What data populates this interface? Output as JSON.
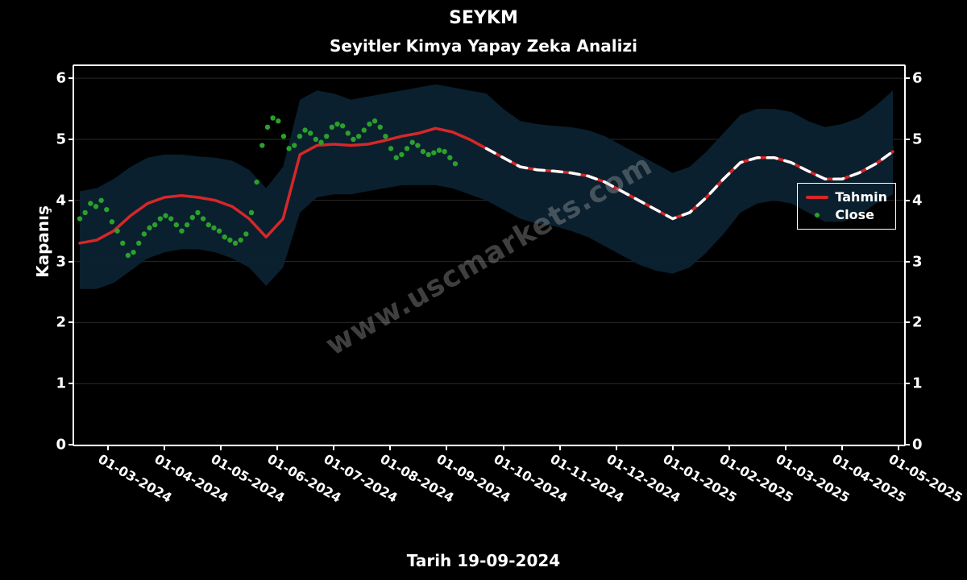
{
  "chart": {
    "type": "line",
    "title": "SEYKM",
    "subtitle": "Seyitler Kimya Yapay Zeka Analizi",
    "ylabel": "Kapanış",
    "xlabel": "Tarih 19-09-2024",
    "background_color": "#000000",
    "plot_background": "#000000",
    "axis_color": "#ffffff",
    "grid_color": "#2a2a2a",
    "text_color": "#ffffff",
    "title_fontsize": 22,
    "subtitle_fontsize": 20,
    "label_fontsize": 20,
    "tick_fontsize": 18,
    "xtick_fontsize": 16,
    "xtick_rotation_deg": 30,
    "ylim": [
      0,
      6.2
    ],
    "yticks": [
      0,
      1,
      2,
      3,
      4,
      5,
      6
    ],
    "ytick_labels": [
      "0",
      "1",
      "2",
      "3",
      "4",
      "5",
      "6"
    ],
    "xticks_idx": [
      0,
      1,
      2,
      3,
      4,
      5,
      6,
      7,
      8,
      9,
      10,
      11,
      12,
      13,
      14
    ],
    "xtick_labels": [
      "01-03-2024",
      "01-04-2024",
      "01-05-2024",
      "01-06-2024",
      "01-07-2024",
      "01-08-2024",
      "01-09-2024",
      "01-10-2024",
      "01-11-2024",
      "01-12-2024",
      "01-01-2025",
      "01-02-2025",
      "01-03-2025",
      "01-04-2025",
      "01-05-2025"
    ],
    "xlim_idx": [
      -0.6,
      14.1
    ],
    "legend": {
      "position": "right-middle",
      "border_color": "#ffffff",
      "items": [
        {
          "label": "Tahmin",
          "type": "line",
          "color": "#d62728",
          "dash": true
        },
        {
          "label": "Close",
          "type": "dot",
          "color": "#2ca02c"
        }
      ]
    },
    "watermark": {
      "text": "www.uscmarkets.com",
      "color": "rgba(180,180,180,0.35)",
      "rotation_deg": -30,
      "fontsize": 36
    },
    "band": {
      "fill": "#0b2230",
      "opacity": 0.95,
      "upper": [
        4.15,
        4.2,
        4.35,
        4.55,
        4.7,
        4.75,
        4.75,
        4.72,
        4.7,
        4.65,
        4.5,
        4.2,
        4.55,
        5.65,
        5.8,
        5.75,
        5.65,
        5.7,
        5.75,
        5.8,
        5.85,
        5.9,
        5.85,
        5.8,
        5.75,
        5.5,
        5.3,
        5.25,
        5.22,
        5.2,
        5.15,
        5.05,
        4.9,
        4.75,
        4.6,
        4.45,
        4.55,
        4.8,
        5.1,
        5.4,
        5.5,
        5.5,
        5.45,
        5.3,
        5.2,
        5.25,
        5.35,
        5.55,
        5.8
      ],
      "lower": [
        2.55,
        2.55,
        2.65,
        2.85,
        3.05,
        3.15,
        3.2,
        3.2,
        3.15,
        3.05,
        2.9,
        2.6,
        2.9,
        3.8,
        4.05,
        4.1,
        4.1,
        4.15,
        4.2,
        4.25,
        4.25,
        4.25,
        4.2,
        4.1,
        4.0,
        3.85,
        3.7,
        3.62,
        3.58,
        3.5,
        3.4,
        3.25,
        3.1,
        2.95,
        2.85,
        2.8,
        2.9,
        3.15,
        3.45,
        3.8,
        3.95,
        4.0,
        3.95,
        3.8,
        3.65,
        3.65,
        3.75,
        3.95,
        4.1
      ],
      "x_idx_step": 0.3
    },
    "tahmin": {
      "color_solid": "#d62728",
      "white_overlay": "#ffffff",
      "line_width": 3.5,
      "dash_pattern": "12 10",
      "dash_start_idx": 6.4,
      "y": [
        3.3,
        3.35,
        3.5,
        3.75,
        3.95,
        4.05,
        4.08,
        4.05,
        4.0,
        3.9,
        3.7,
        3.4,
        3.7,
        4.75,
        4.9,
        4.92,
        4.9,
        4.92,
        4.98,
        5.05,
        5.1,
        5.18,
        5.12,
        5.0,
        4.85,
        4.7,
        4.55,
        4.5,
        4.48,
        4.45,
        4.4,
        4.3,
        4.15,
        4.0,
        3.85,
        3.7,
        3.8,
        4.05,
        4.35,
        4.62,
        4.7,
        4.7,
        4.62,
        4.48,
        4.35,
        4.35,
        4.45,
        4.6,
        4.8
      ],
      "x_idx_step": 0.3
    },
    "close": {
      "color": "#2ca02c",
      "marker": "circle",
      "marker_size": 3.2,
      "end_idx": 6.6,
      "y": [
        3.7,
        3.8,
        3.95,
        3.9,
        4.0,
        3.85,
        3.65,
        3.5,
        3.3,
        3.1,
        3.15,
        3.3,
        3.45,
        3.55,
        3.6,
        3.7,
        3.75,
        3.7,
        3.6,
        3.5,
        3.6,
        3.72,
        3.8,
        3.7,
        3.6,
        3.55,
        3.5,
        3.4,
        3.35,
        3.3,
        3.35,
        3.45,
        3.8,
        4.3,
        4.9,
        5.2,
        5.35,
        5.3,
        5.05,
        4.85,
        4.9,
        5.05,
        5.15,
        5.1,
        5.0,
        4.95,
        5.05,
        5.2,
        5.25,
        5.22,
        5.1,
        5.0,
        5.05,
        5.15,
        5.25,
        5.3,
        5.2,
        5.05,
        4.85,
        4.7,
        4.75,
        4.85,
        4.95,
        4.9,
        4.8,
        4.75,
        4.78,
        4.82,
        4.8,
        4.7,
        4.6
      ],
      "x_idx_step": 0.095
    }
  }
}
